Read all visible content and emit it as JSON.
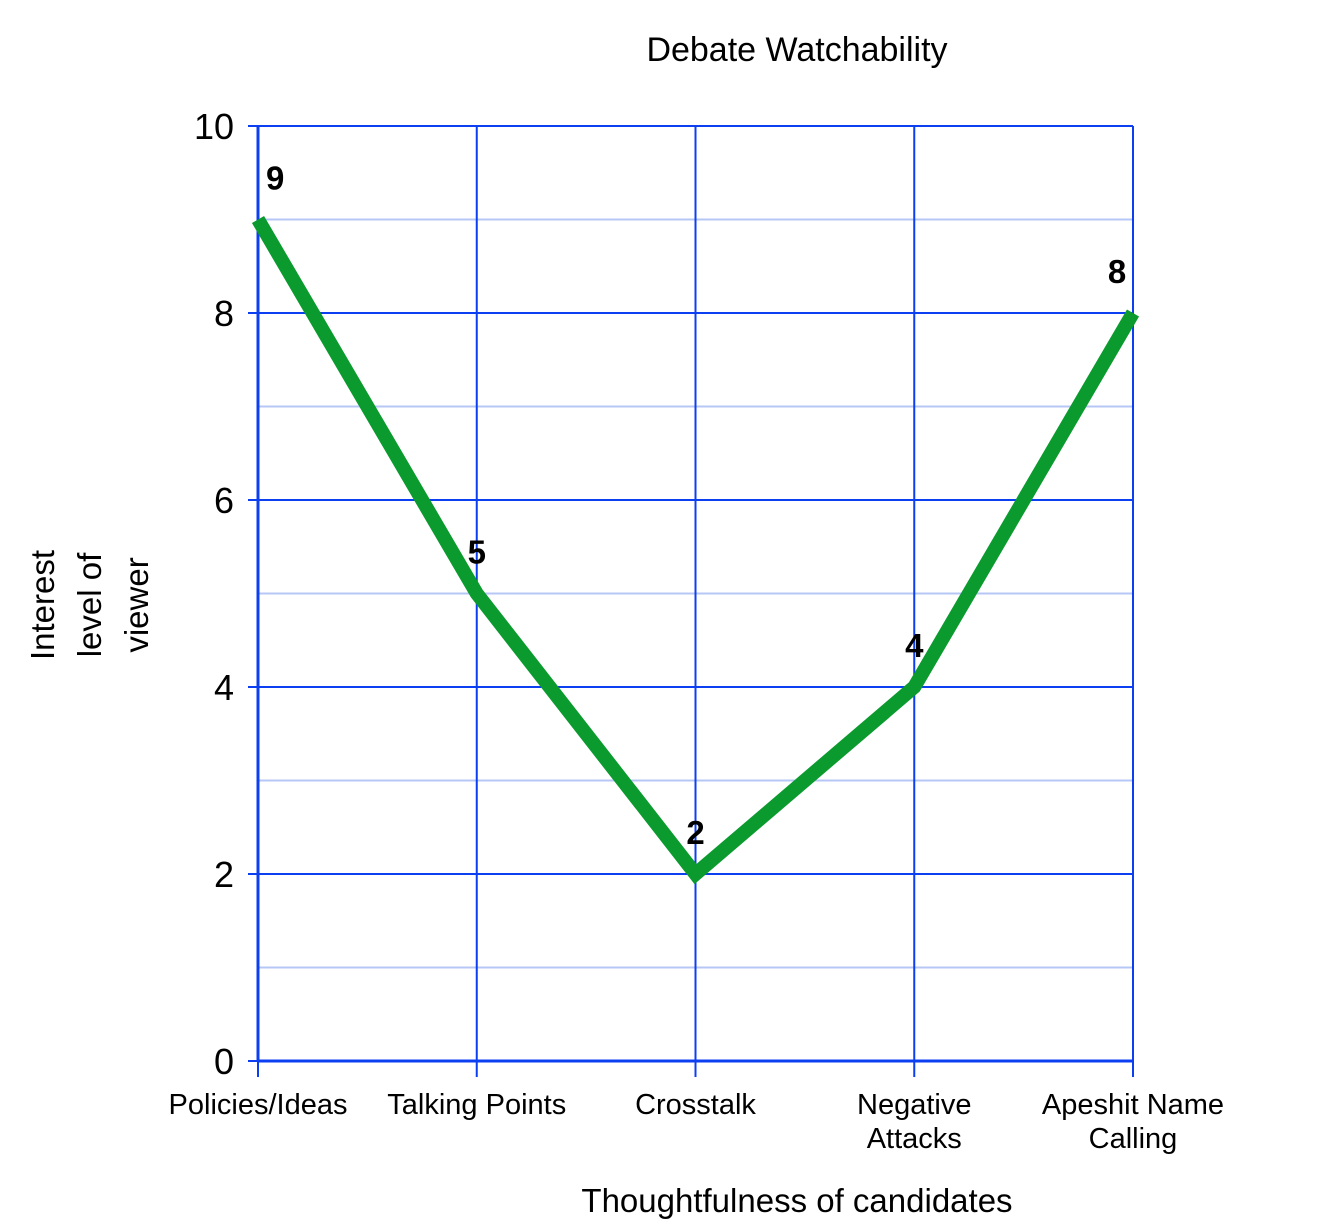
{
  "chart_data": {
    "type": "line",
    "title": "Debate Watchability",
    "xlabel": "Thoughtfulness of candidates",
    "ylabel": [
      "Interest",
      "level of",
      "viewer"
    ],
    "categories": [
      [
        "Policies/Ideas"
      ],
      [
        "Talking Points"
      ],
      [
        "Crosstalk"
      ],
      [
        "Negative",
        "Attacks"
      ],
      [
        "Apeshit Name",
        "Calling"
      ]
    ],
    "series": [
      {
        "values": [
          9,
          5,
          2,
          4,
          8
        ],
        "color": "#0a9a2e"
      }
    ],
    "ylim": [
      0,
      10
    ],
    "yticks": [
      0,
      2,
      4,
      6,
      8,
      10
    ],
    "grid": true,
    "major_grid_color": "#0d3ff2",
    "minor_grid_color": "#b7c7f5",
    "data_labels": true
  }
}
